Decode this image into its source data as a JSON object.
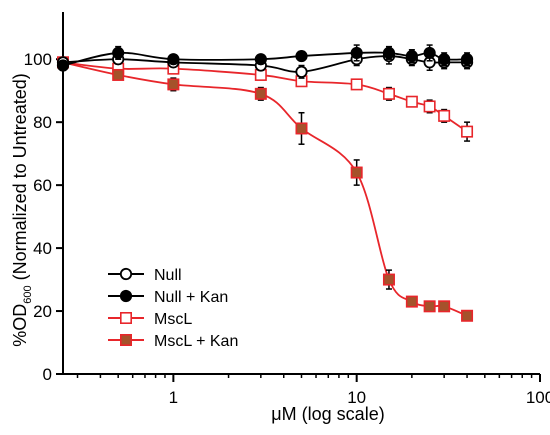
{
  "chart_data": {
    "type": "line",
    "xlabel": "μM (log scale)",
    "ylabel_main": "%OD",
    "ylabel_sub": "600",
    "ylabel_rest": " (Normalized to Untreated)",
    "x_scale": "log",
    "xlim": [
      0.25,
      100
    ],
    "ylim": [
      0,
      115
    ],
    "x_ticks": [
      1,
      10,
      100
    ],
    "y_ticks": [
      0,
      20,
      40,
      60,
      80,
      100
    ],
    "legend_position": "bottom-left",
    "series": [
      {
        "name": "Null",
        "marker": "circle-open",
        "color": "#000000",
        "x": [
          0.25,
          0.5,
          1,
          3,
          5,
          10,
          15,
          20,
          25,
          30,
          40
        ],
        "y": [
          99,
          100,
          99,
          98,
          96,
          100,
          101,
          100,
          99,
          99,
          99
        ],
        "err": [
          1.5,
          1.5,
          1,
          1.5,
          2,
          2,
          2.5,
          2,
          2.5,
          2,
          2
        ]
      },
      {
        "name": "Null + Kan",
        "marker": "circle-filled",
        "color": "#000000",
        "x": [
          0.25,
          0.5,
          1,
          3,
          5,
          10,
          15,
          20,
          25,
          30,
          40
        ],
        "y": [
          98,
          102,
          100,
          100,
          101,
          102,
          102,
          101,
          102,
          100,
          100
        ],
        "err": [
          1.5,
          2,
          1,
          1,
          1.5,
          2.5,
          2,
          2,
          2.5,
          2,
          2
        ]
      },
      {
        "name": "MscL",
        "marker": "square-open",
        "color": "#e8262b",
        "x": [
          0.25,
          0.5,
          1,
          3,
          5,
          10,
          15,
          20,
          25,
          30,
          40
        ],
        "y": [
          99,
          97,
          97,
          95,
          93,
          92,
          89,
          86.5,
          85,
          82,
          77
        ],
        "err": [
          1,
          1.5,
          1.5,
          1.5,
          1.5,
          1.5,
          2,
          1.5,
          2,
          2,
          3
        ]
      },
      {
        "name": "MscL + Kan",
        "marker": "square-filled",
        "color": "#e8262b",
        "x": [
          0.25,
          0.5,
          1,
          3,
          5,
          10,
          15,
          20,
          25,
          30,
          40
        ],
        "y": [
          99,
          95,
          92,
          89,
          78,
          64,
          30,
          23,
          21.5,
          21.5,
          18.5
        ],
        "err": [
          1,
          1.5,
          2,
          2,
          5,
          4,
          3,
          1,
          1,
          1,
          1
        ]
      }
    ]
  }
}
